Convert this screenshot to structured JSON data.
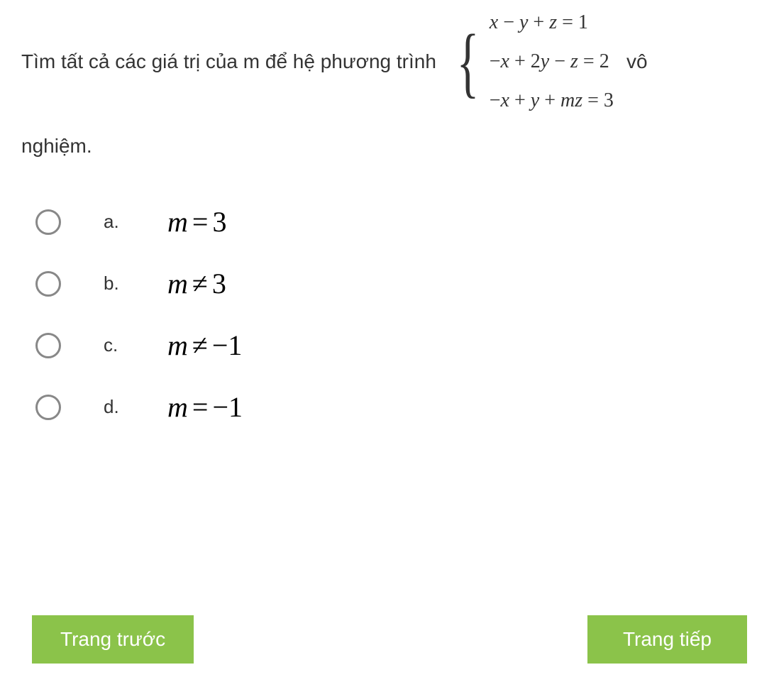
{
  "question": {
    "text_before": "Tìm tất cả các giá trị của m để hệ phương trình",
    "text_after_inline": "vô",
    "text_continue": "nghiệm.",
    "equations": {
      "eq1": "x − y + z = 1",
      "eq2": "−x + 2y − z = 2",
      "eq3": "−x + y + mz = 3"
    }
  },
  "options": {
    "a": {
      "label": "a.",
      "math": "m = 3"
    },
    "b": {
      "label": "b.",
      "math": "m ≠ 3"
    },
    "c": {
      "label": "c.",
      "math": "m ≠ −1"
    },
    "d": {
      "label": "d.",
      "math": "m = −1"
    }
  },
  "nav": {
    "prev": "Trang trước",
    "next": "Trang tiếp"
  },
  "colors": {
    "button_bg": "#8bc34a",
    "button_text": "#ffffff",
    "text": "#333333",
    "radio_border": "#888888",
    "background": "#ffffff"
  }
}
